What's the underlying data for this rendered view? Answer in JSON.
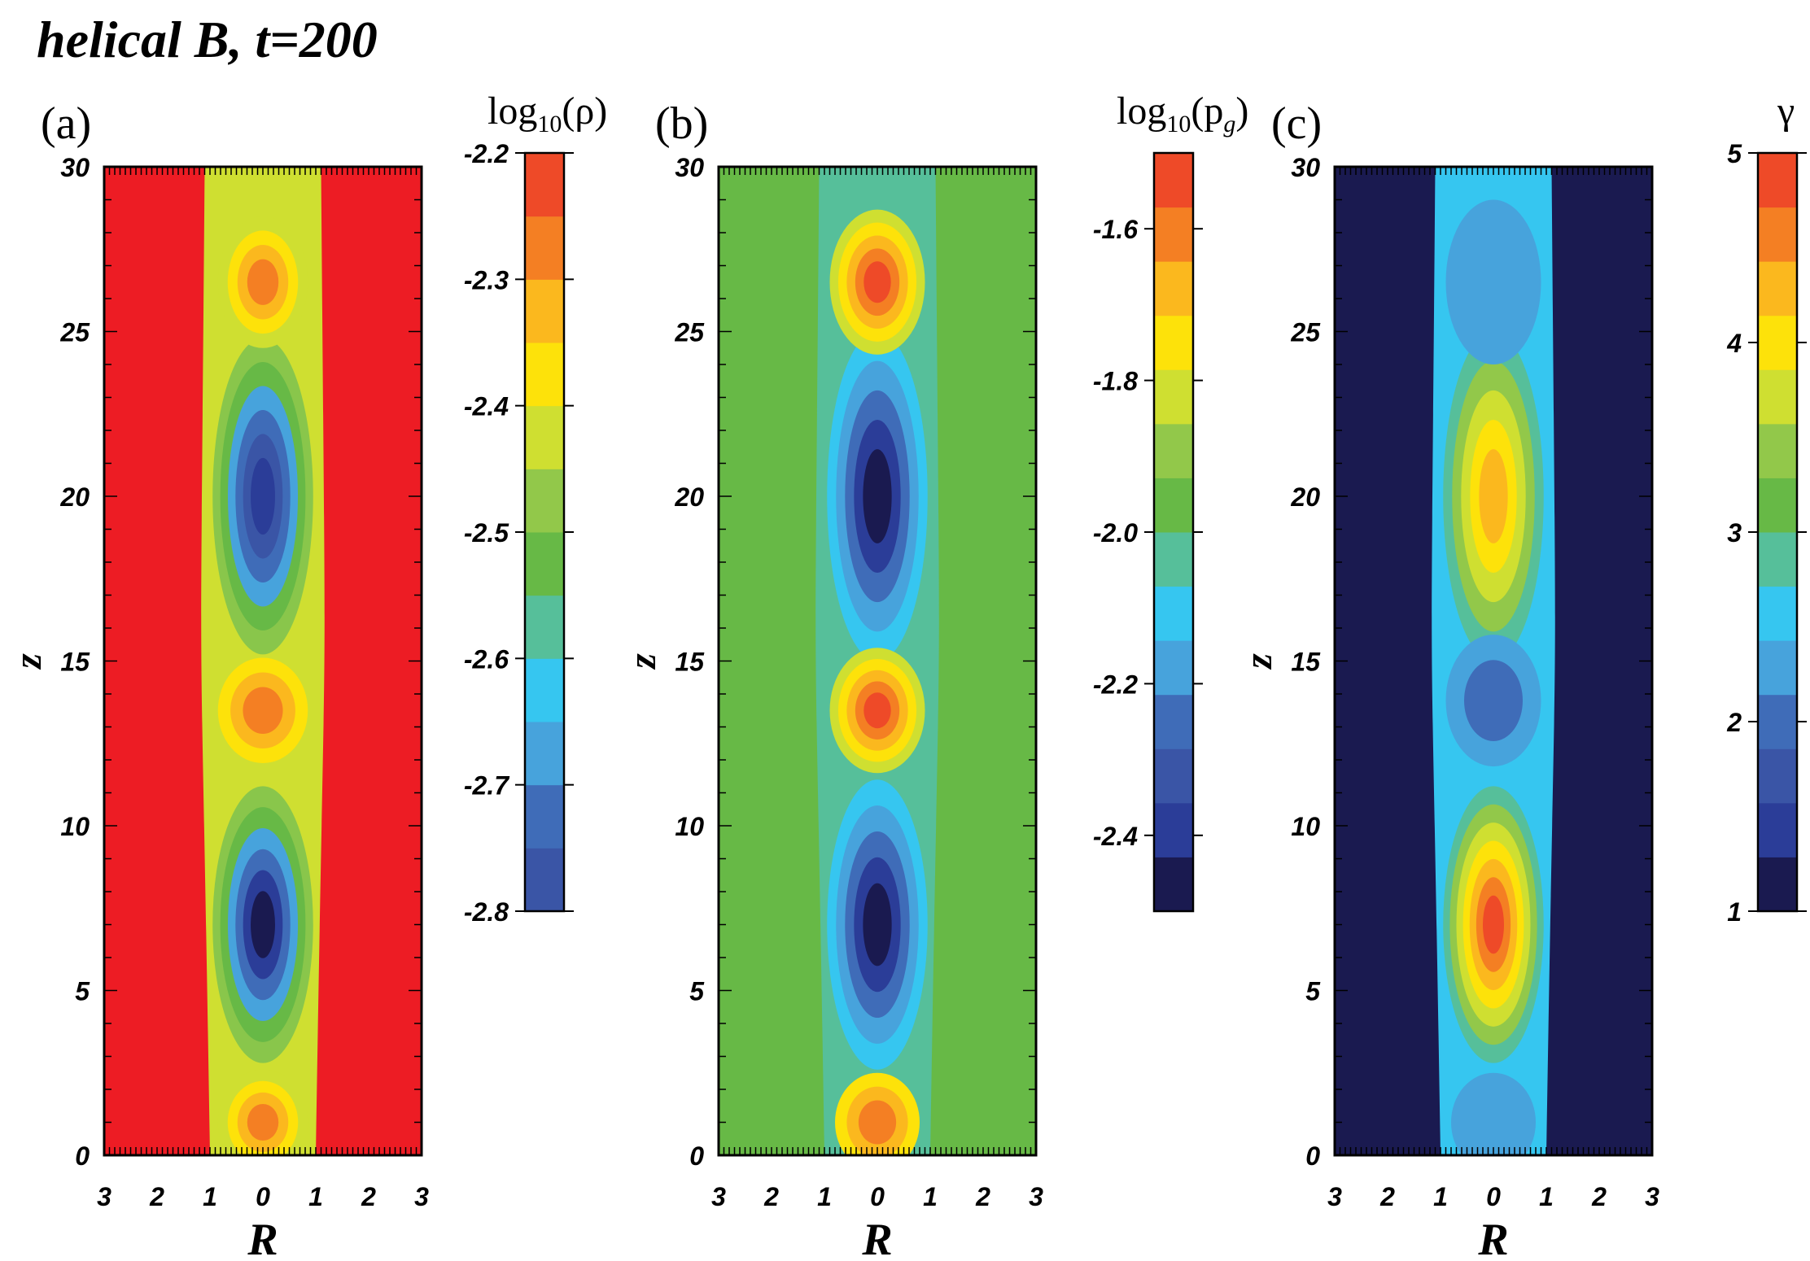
{
  "chart_data": {
    "type": "heatmap",
    "title": "helical B, t=200",
    "panels": [
      {
        "id": "a",
        "label": "(a)",
        "quantity": "density",
        "colorbar_label_prefix": "log",
        "colorbar_label_sub": "10",
        "colorbar_label_arg": "(ρ)",
        "colorbar_range": [
          -2.8,
          -2.2
        ],
        "colorbar_ticks": [
          "-2.2",
          "-2.3",
          "-2.4",
          "-2.5",
          "-2.6",
          "-2.7",
          "-2.8"
        ],
        "colorbar_levels": [
          "#3a55a6",
          "#3f6cb8",
          "#47a3dc",
          "#36c6f0",
          "#56bf9a",
          "#67b946",
          "#92c84a",
          "#cfdf31",
          "#fde20a",
          "#fbb81e",
          "#f47f23",
          "#ee4a28"
        ],
        "background": "#ed1c24",
        "blobs": [
          {
            "z": 20.0,
            "hw": 0.95,
            "hh": 4.8,
            "rings": [
              "#89c64b",
              "#67b946",
              "#47a3dc",
              "#3f6cb8",
              "#3a55a6",
              "#2b3d98"
            ]
          },
          {
            "z": 7.0,
            "hw": 0.95,
            "hh": 4.2,
            "rings": [
              "#89c64b",
              "#67b946",
              "#47a3dc",
              "#3f6cb8",
              "#2b3d98",
              "#1a1a50"
            ]
          },
          {
            "z": 13.5,
            "hw": 0.85,
            "hh": 1.6,
            "rings": [
              "#fde20a",
              "#fbb81e",
              "#f47f23"
            ]
          },
          {
            "z": 26.5,
            "hw": 0.85,
            "hh": 2.0,
            "rings": [
              "#cfdf31",
              "#fde20a",
              "#fbb81e",
              "#f47f23"
            ]
          },
          {
            "z": 1.0,
            "hw": 0.85,
            "hh": 1.6,
            "rings": [
              "#cfdf31",
              "#fde20a",
              "#fbb81e",
              "#f47f23"
            ]
          }
        ],
        "jet_fill": "#cfdf31"
      },
      {
        "id": "b",
        "label": "(b)",
        "quantity": "gas pressure",
        "colorbar_label_prefix": "log",
        "colorbar_label_sub": "10",
        "colorbar_label_arg": "(p",
        "colorbar_label_sub2": "g",
        "colorbar_label_end": ")",
        "colorbar_range": [
          -2.5,
          -1.5
        ],
        "colorbar_ticks": [
          "-1.6",
          "-1.8",
          "-2.0",
          "-2.2",
          "-2.4"
        ],
        "colorbar_levels": [
          "#1a1a50",
          "#2b3d98",
          "#3a55a6",
          "#3f6cb8",
          "#47a3dc",
          "#36c6f0",
          "#56bf9a",
          "#67b946",
          "#92c84a",
          "#cfdf31",
          "#fde20a",
          "#fbb81e",
          "#f47f23",
          "#ee4a28"
        ],
        "background": "#67b946",
        "blobs": [
          {
            "z": 20.0,
            "hw": 0.95,
            "hh": 5.0,
            "rings": [
              "#36c6f0",
              "#47a3dc",
              "#3f6cb8",
              "#2b3d98",
              "#1a1a50"
            ]
          },
          {
            "z": 7.0,
            "hw": 0.95,
            "hh": 4.4,
            "rings": [
              "#36c6f0",
              "#47a3dc",
              "#3f6cb8",
              "#2b3d98",
              "#1a1a50"
            ]
          },
          {
            "z": 13.5,
            "hw": 0.9,
            "hh": 1.9,
            "rings": [
              "#cfdf31",
              "#fde20a",
              "#fbb81e",
              "#f47f23",
              "#ee4a28"
            ]
          },
          {
            "z": 26.5,
            "hw": 0.9,
            "hh": 2.2,
            "rings": [
              "#cfdf31",
              "#fde20a",
              "#fbb81e",
              "#f47f23",
              "#ee4a28"
            ]
          },
          {
            "z": 1.0,
            "hw": 0.8,
            "hh": 1.5,
            "rings": [
              "#fde20a",
              "#fbb81e",
              "#f47f23"
            ]
          }
        ],
        "jet_fill": "#56bf9a"
      },
      {
        "id": "c",
        "label": "(c)",
        "quantity": "Lorentz factor",
        "colorbar_label_prefix": "γ",
        "colorbar_range": [
          1,
          5
        ],
        "colorbar_ticks": [
          "5",
          "4",
          "3",
          "2",
          "1"
        ],
        "colorbar_levels": [
          "#1a1a50",
          "#2b3d98",
          "#3a55a6",
          "#3f6cb8",
          "#47a3dc",
          "#36c6f0",
          "#56bf9a",
          "#67b946",
          "#92c84a",
          "#cfdf31",
          "#fde20a",
          "#fbb81e",
          "#f47f23",
          "#ee4a28"
        ],
        "background": "#1a1a50",
        "blobs": [
          {
            "z": 20.0,
            "hw": 0.95,
            "hh": 5.0,
            "rings": [
              "#56bf9a",
              "#92c84a",
              "#cfdf31",
              "#fde20a",
              "#fbb81e"
            ]
          },
          {
            "z": 7.0,
            "hw": 0.95,
            "hh": 4.2,
            "rings": [
              "#56bf9a",
              "#92c84a",
              "#cfdf31",
              "#fde20a",
              "#fbb81e",
              "#f47f23",
              "#ee4a28"
            ]
          },
          {
            "z": 13.8,
            "hw": 0.9,
            "hh": 2.0,
            "rings": [
              "#47a3dc",
              "#3f6cb8"
            ]
          },
          {
            "z": 26.5,
            "hw": 0.9,
            "hh": 2.5,
            "rings": [
              "#47a3dc"
            ]
          },
          {
            "z": 1.0,
            "hw": 0.8,
            "hh": 1.5,
            "rings": [
              "#47a3dc"
            ]
          }
        ],
        "jet_fill": "#36c6f0"
      }
    ],
    "xlabel": "R",
    "ylabel": "z",
    "xlim": [
      -3,
      3
    ],
    "ylim": [
      0,
      30
    ],
    "xtick_labels": [
      "3",
      "2",
      "1",
      "0",
      "1",
      "2",
      "3"
    ],
    "xtick_values": [
      -3,
      -2,
      -1,
      0,
      1,
      2,
      3
    ],
    "ytick_labels": [
      "0",
      "5",
      "10",
      "15",
      "20",
      "25",
      "30"
    ],
    "ytick_values": [
      0,
      5,
      10,
      15,
      20,
      25,
      30
    ]
  }
}
